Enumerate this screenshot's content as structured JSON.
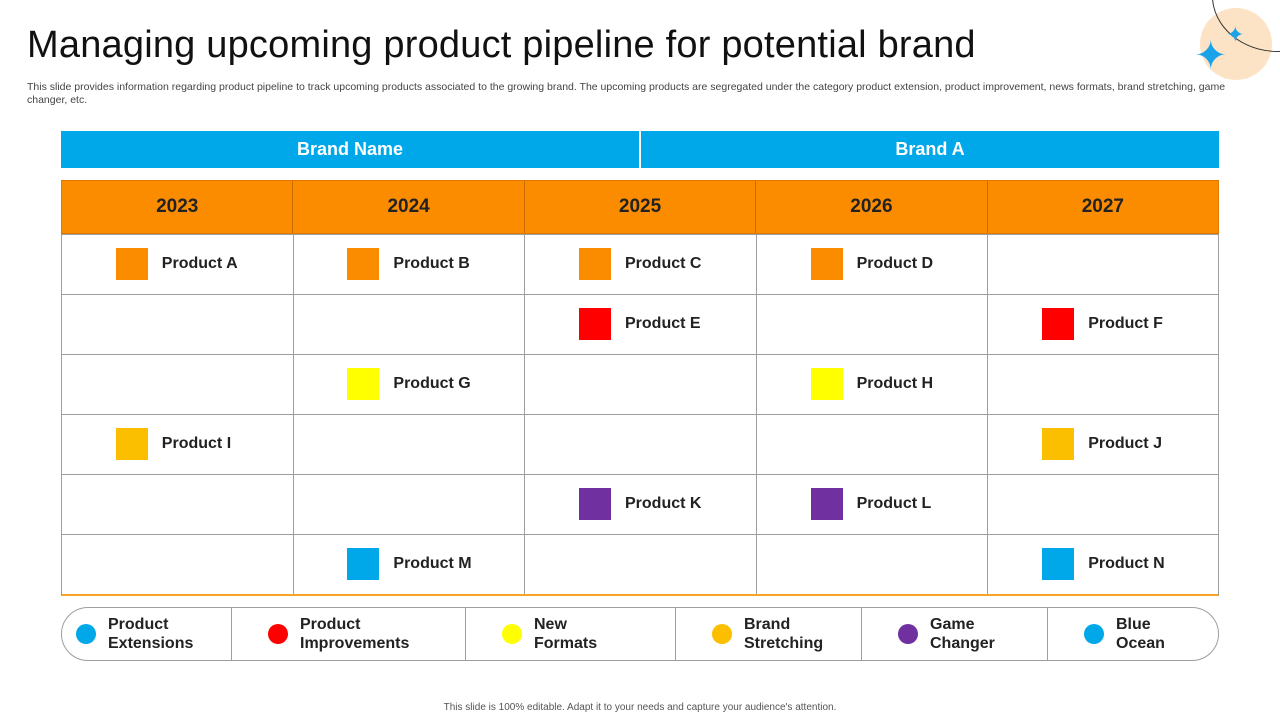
{
  "slide": {
    "title": "Managing upcoming product pipeline for potential brand",
    "subtitle": "This slide provides information regarding product pipeline to track upcoming products associated to the growing brand. The upcoming products are segregated under the category product extension, product improvement, news formats, brand stretching, game changer, etc.",
    "footer": "This slide is 100% editable.  Adapt it to your needs and capture your audience's attention."
  },
  "brand": {
    "label": "Brand Name",
    "value": "Brand A",
    "color": "#00a8ea"
  },
  "years": [
    "2023",
    "2024",
    "2025",
    "2026",
    "2027"
  ],
  "header_color": "#fb8c00",
  "categories": [
    {
      "key": "extensions",
      "line1": "Product",
      "line2": "Extensions",
      "color": "#00a8ea"
    },
    {
      "key": "improvements",
      "line1": "Product",
      "line2": "Improvements",
      "color": "#ff0000"
    },
    {
      "key": "formats",
      "line1": "New",
      "line2": "Formats",
      "color": "#ffff00"
    },
    {
      "key": "stretching",
      "line1": "Brand",
      "line2": "Stretching",
      "color": "#fbbf00"
    },
    {
      "key": "gamechanger",
      "line1": "Game",
      "line2": "Changer",
      "color": "#7030a0"
    },
    {
      "key": "blueocean",
      "line1": "Blue",
      "line2": "Ocean",
      "color": "#00a8ea"
    }
  ],
  "products": [
    {
      "name": "Product A",
      "year": "2023",
      "row": 1,
      "color": "#fb8c00"
    },
    {
      "name": "Product B",
      "year": "2024",
      "row": 1,
      "color": "#fb8c00"
    },
    {
      "name": "Product C",
      "year": "2025",
      "row": 1,
      "color": "#fb8c00"
    },
    {
      "name": "Product D",
      "year": "2026",
      "row": 1,
      "color": "#fb8c00"
    },
    {
      "name": "Product E",
      "year": "2025",
      "row": 2,
      "color": "#ff0000"
    },
    {
      "name": "Product F",
      "year": "2027",
      "row": 2,
      "color": "#ff0000"
    },
    {
      "name": "Product G",
      "year": "2024",
      "row": 3,
      "color": "#ffff00"
    },
    {
      "name": "Product H",
      "year": "2026",
      "row": 3,
      "color": "#ffff00"
    },
    {
      "name": "Product I",
      "year": "2023",
      "row": 4,
      "color": "#fbbf00"
    },
    {
      "name": "Product J",
      "year": "2027",
      "row": 4,
      "color": "#fbbf00"
    },
    {
      "name": "Product K",
      "year": "2025",
      "row": 5,
      "color": "#7030a0"
    },
    {
      "name": "Product L",
      "year": "2026",
      "row": 5,
      "color": "#7030a0"
    },
    {
      "name": "Product M",
      "year": "2024",
      "row": 6,
      "color": "#00a8ea"
    },
    {
      "name": "Product N",
      "year": "2027",
      "row": 6,
      "color": "#00a8ea"
    }
  ]
}
